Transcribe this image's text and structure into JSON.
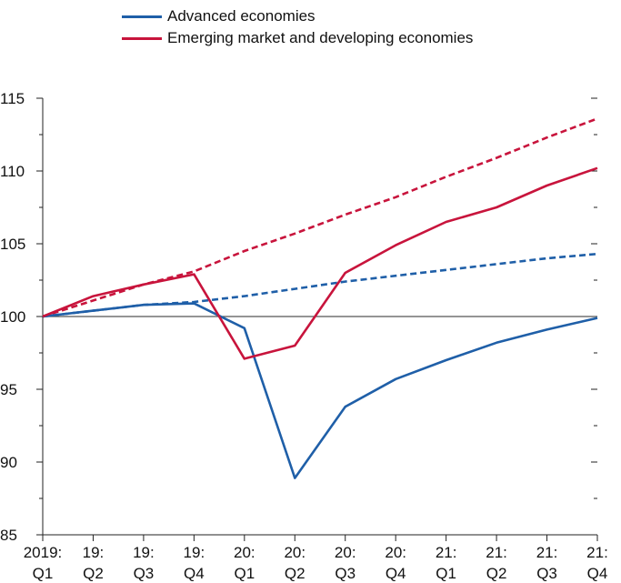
{
  "chart_data": {
    "type": "line",
    "categories": [
      "2019:\nQ1",
      "19:\nQ2",
      "19:\nQ3",
      "19:\nQ4",
      "20:\nQ1",
      "20:\nQ2",
      "20:\nQ3",
      "20:\nQ4",
      "21:\nQ1",
      "21:\nQ2",
      "21:\nQ3",
      "21:\nQ4"
    ],
    "ylim": [
      85,
      115
    ],
    "y_major_ticks": [
      85,
      90,
      95,
      100,
      105,
      110,
      115
    ],
    "y_minor_ticks": [
      87.5,
      92.5,
      97.5,
      102.5,
      107.5,
      112.5
    ],
    "reference_line": 100,
    "grid": false,
    "legend_position": "top",
    "series": [
      {
        "name": "Advanced economies",
        "color": "#1f5fa8",
        "style": "solid",
        "values": [
          100,
          100.4,
          100.8,
          100.9,
          99.2,
          88.9,
          93.8,
          95.7,
          97.0,
          98.2,
          99.1,
          99.9
        ]
      },
      {
        "name": "Emerging market and developing economies",
        "color": "#c8143c",
        "style": "solid",
        "values": [
          100,
          101.4,
          102.2,
          102.9,
          97.1,
          98.0,
          103.0,
          104.9,
          106.5,
          107.5,
          109.0,
          110.2
        ]
      },
      {
        "color": "#1f5fa8",
        "style": "dashed",
        "values": [
          100,
          100.4,
          100.8,
          101.0,
          101.4,
          101.9,
          102.4,
          102.8,
          103.2,
          103.6,
          104.0,
          104.3
        ]
      },
      {
        "color": "#c8143c",
        "style": "dashed",
        "values": [
          100,
          101.1,
          102.2,
          103.1,
          104.5,
          105.7,
          107.0,
          108.2,
          109.6,
          110.9,
          112.3,
          113.6
        ]
      }
    ]
  }
}
